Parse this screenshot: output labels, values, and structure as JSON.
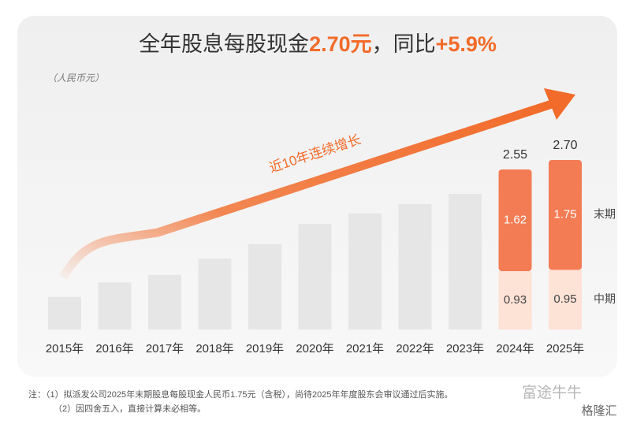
{
  "chart_data": {
    "type": "stacked_bar",
    "title_parts": [
      "全年股息每股现金",
      "2.70元",
      "，同比",
      "+5.9%"
    ],
    "unit_label": "（人民币元）",
    "annotation": "近10年连续增长",
    "categories": [
      "2015年",
      "2016年",
      "2017年",
      "2018年",
      "2019年",
      "2020年",
      "2021年",
      "2022年",
      "2023年",
      "2024年",
      "2025年"
    ],
    "series": [
      {
        "color": "#e6e6e6",
        "values": [
          0.52,
          0.75,
          0.87,
          1.13,
          1.36,
          1.68,
          1.85,
          2.0,
          2.16,
          null,
          null
        ]
      },
      {
        "name": "中期",
        "color": "#fde2d6",
        "values": [
          null,
          null,
          null,
          null,
          null,
          null,
          null,
          null,
          null,
          0.93,
          0.95
        ]
      },
      {
        "name": "末期",
        "color": "#f47c55",
        "values": [
          null,
          null,
          null,
          null,
          null,
          null,
          null,
          null,
          null,
          1.62,
          1.75
        ]
      }
    ],
    "totals": [
      null,
      null,
      null,
      null,
      null,
      null,
      null,
      null,
      null,
      2.55,
      2.7
    ],
    "totals_labels": [
      null,
      null,
      null,
      null,
      null,
      null,
      null,
      null,
      null,
      "2.55",
      "2.70"
    ],
    "accent_color": "#f26b2a",
    "notes": [
      "注：（1）拟派发公司2025年末期股息每股现金人民币1.75元（含税），尚待2025年年度股东会审议通过后实施。",
      "（2）因四舍五入，直接计算未必相等。"
    ],
    "watermarks": [
      "富途牛牛",
      "格隆汇"
    ]
  }
}
